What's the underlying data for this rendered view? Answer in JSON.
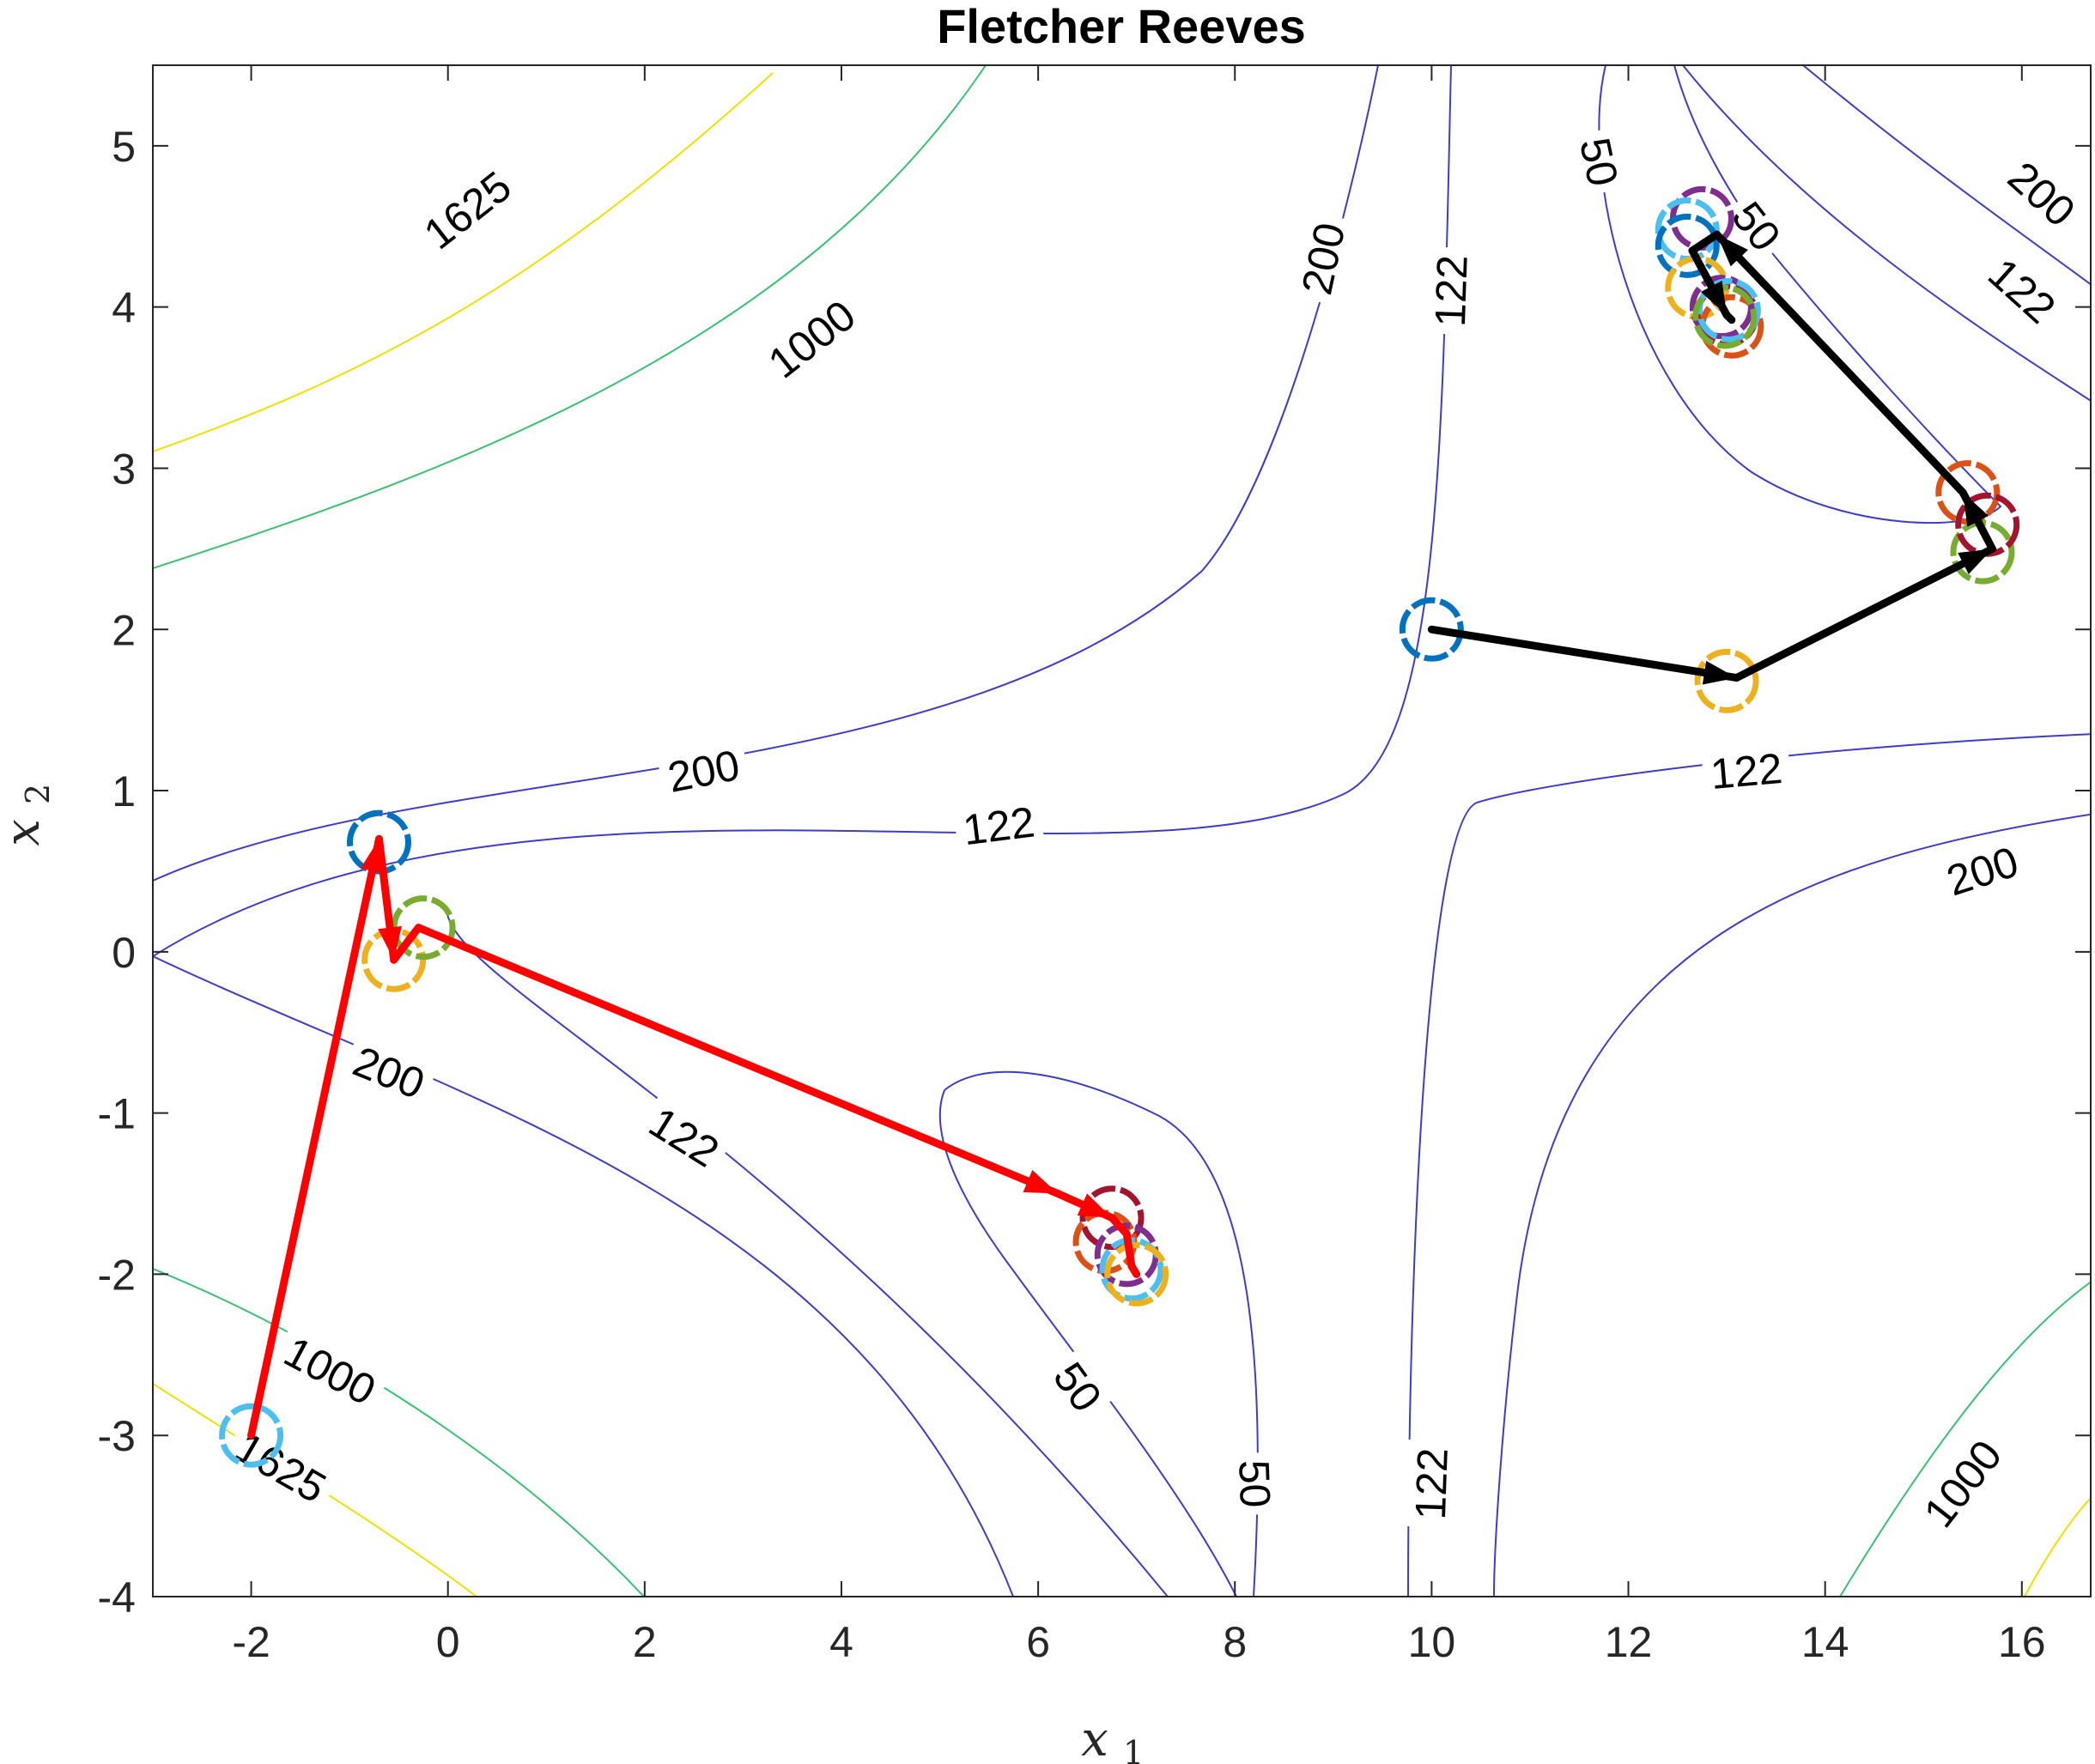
{
  "chart_data": {
    "type": "contour",
    "title": "Fletcher Reeves",
    "xlabel": {
      "base": "x",
      "sub": "1"
    },
    "ylabel": {
      "base": "x",
      "sub": "2"
    },
    "xlim": [
      -3,
      16.7
    ],
    "ylim": [
      -4,
      5.5
    ],
    "xticks": [
      "-2",
      "0",
      "2",
      "4",
      "6",
      "8",
      "10",
      "12",
      "14",
      "16"
    ],
    "yticks": [
      "-4",
      "-3",
      "-2",
      "-1",
      "0",
      "1",
      "2",
      "3",
      "4",
      "5"
    ],
    "contour_levels": [
      50,
      122,
      200,
      1000,
      1625
    ],
    "contour_labels": [
      {
        "text": "1625",
        "x": 0.2,
        "y": 4.6,
        "angle": -38
      },
      {
        "text": "1000",
        "x": 3.7,
        "y": 3.8,
        "angle": -38
      },
      {
        "text": "200",
        "x": 8.9,
        "y": 4.3,
        "angle": -78
      },
      {
        "text": "122",
        "x": 10.2,
        "y": 4.1,
        "angle": -88
      },
      {
        "text": "50",
        "x": 11.7,
        "y": 4.9,
        "angle": 78
      },
      {
        "text": "50",
        "x": 13.3,
        "y": 4.5,
        "angle": 52
      },
      {
        "text": "200",
        "x": 16.2,
        "y": 4.7,
        "angle": 42
      },
      {
        "text": "122",
        "x": 16.0,
        "y": 4.1,
        "angle": 42
      },
      {
        "text": "200",
        "x": 2.6,
        "y": 1.12,
        "angle": -11
      },
      {
        "text": "122",
        "x": 5.6,
        "y": 0.78,
        "angle": -7
      },
      {
        "text": "122",
        "x": 13.2,
        "y": 1.12,
        "angle": -5
      },
      {
        "text": "200",
        "x": 15.6,
        "y": 0.5,
        "angle": -18
      },
      {
        "text": "200",
        "x": -0.6,
        "y": -0.75,
        "angle": 22
      },
      {
        "text": "122",
        "x": 2.4,
        "y": -1.15,
        "angle": 32
      },
      {
        "text": "50",
        "x": 6.4,
        "y": -2.7,
        "angle": 54
      },
      {
        "text": "50",
        "x": 8.2,
        "y": -3.3,
        "angle": 88
      },
      {
        "text": "122",
        "x": 10.0,
        "y": -3.3,
        "angle": -88
      },
      {
        "text": "1000",
        "x": -1.2,
        "y": -2.6,
        "angle": 28
      },
      {
        "text": "1625",
        "x": -1.7,
        "y": -3.2,
        "angle": 30
      },
      {
        "text": "1000",
        "x": 15.4,
        "y": -3.3,
        "angle": -52
      }
    ],
    "series": [
      {
        "color": "#ff0000",
        "points": [
          [
            -2.0,
            -3.0
          ],
          [
            -0.7,
            0.7
          ],
          [
            -0.55,
            -0.05
          ],
          [
            -0.3,
            0.15
          ],
          [
            6.2,
            -1.5
          ],
          [
            6.75,
            -1.65
          ],
          [
            6.9,
            -1.75
          ],
          [
            6.95,
            -1.95
          ],
          [
            7.0,
            -2.0
          ]
        ]
      },
      {
        "color": "#000000",
        "points": [
          [
            10.0,
            2.0
          ],
          [
            13.1,
            1.7
          ],
          [
            15.7,
            2.5
          ],
          [
            15.4,
            2.85
          ],
          [
            12.9,
            4.45
          ],
          [
            12.65,
            4.35
          ],
          [
            13.0,
            3.95
          ],
          [
            13.05,
            3.92
          ]
        ]
      }
    ],
    "markers": [
      {
        "x": -2.0,
        "y": -3.0,
        "color": "#4dbeee"
      },
      {
        "x": -0.7,
        "y": 0.68,
        "color": "#0072bd"
      },
      {
        "x": -0.55,
        "y": -0.05,
        "color": "#edb120"
      },
      {
        "x": -0.25,
        "y": 0.15,
        "color": "#77ac30"
      },
      {
        "x": 6.75,
        "y": -1.65,
        "color": "#a2142f"
      },
      {
        "x": 6.68,
        "y": -1.8,
        "color": "#d95319"
      },
      {
        "x": 6.9,
        "y": -1.88,
        "color": "#7e2f8e"
      },
      {
        "x": 6.95,
        "y": -1.97,
        "color": "#4dbeee"
      },
      {
        "x": 7.0,
        "y": -2.0,
        "color": "#edb120"
      },
      {
        "x": 10.0,
        "y": 2.0,
        "color": "#0072bd"
      },
      {
        "x": 13.0,
        "y": 1.68,
        "color": "#edb120"
      },
      {
        "x": 15.6,
        "y": 2.48,
        "color": "#77ac30"
      },
      {
        "x": 15.45,
        "y": 2.85,
        "color": "#d95319"
      },
      {
        "x": 15.65,
        "y": 2.65,
        "color": "#a2142f"
      },
      {
        "x": 12.75,
        "y": 4.55,
        "color": "#7e2f8e"
      },
      {
        "x": 12.6,
        "y": 4.48,
        "color": "#4dbeee"
      },
      {
        "x": 12.6,
        "y": 4.38,
        "color": "#0072bd"
      },
      {
        "x": 12.7,
        "y": 4.12,
        "color": "#edb120"
      },
      {
        "x": 13.05,
        "y": 3.88,
        "color": "#d95319"
      },
      {
        "x": 13.0,
        "y": 3.95,
        "color": "#a2142f"
      },
      {
        "x": 12.95,
        "y": 4.0,
        "color": "#7e2f8e"
      },
      {
        "x": 13.02,
        "y": 3.98,
        "color": "#4dbeee"
      },
      {
        "x": 12.98,
        "y": 3.94,
        "color": "#77ac30"
      }
    ]
  }
}
